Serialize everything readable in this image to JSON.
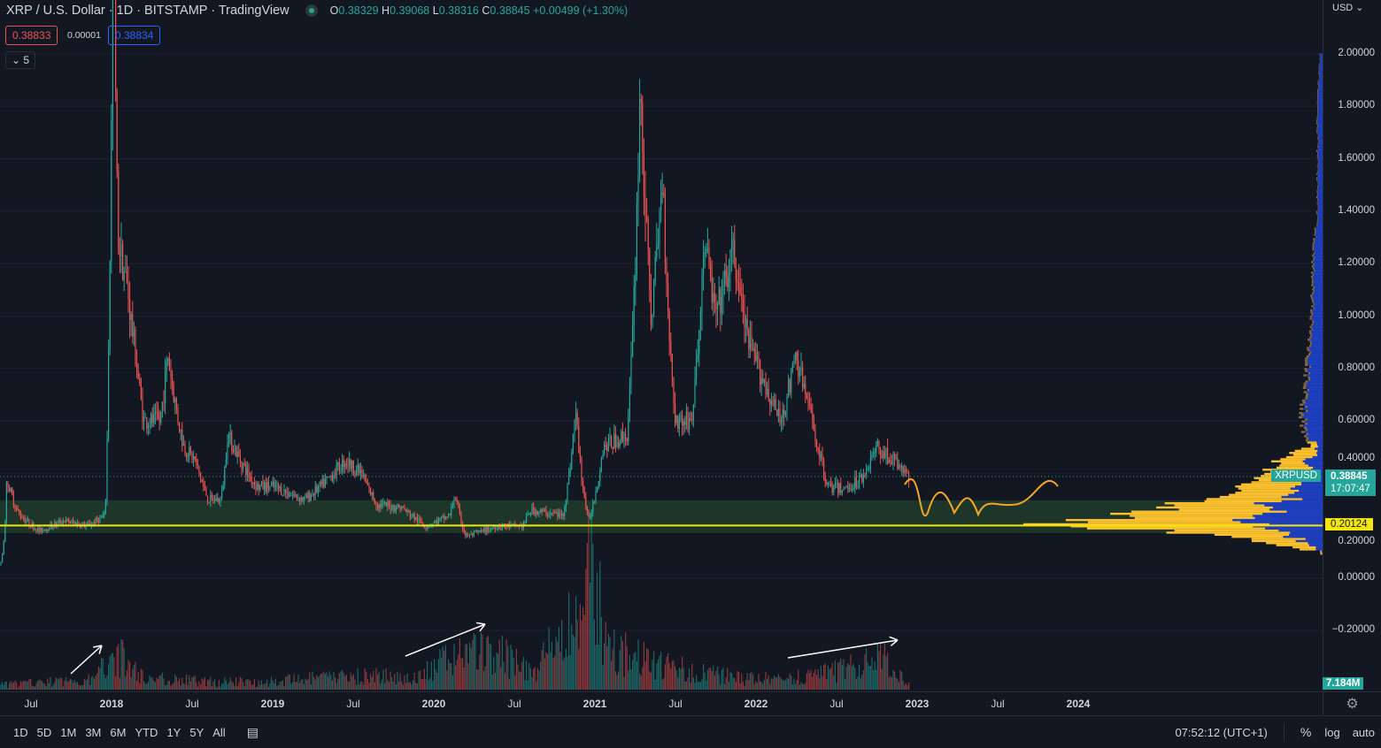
{
  "header": {
    "title": "XRP / U.S. Dollar · 1D · BITSTAMP · TradingView",
    "open_label": "O",
    "open": "0.38329",
    "high_label": "H",
    "high": "0.39068",
    "low_label": "L",
    "low": "0.38316",
    "close_label": "C",
    "close": "0.38845",
    "change": "+0.00499 (+1.30%)",
    "sell_price": "0.38833",
    "spread": "0.00001",
    "buy_price": "0.38834",
    "indicators_toggle": "5",
    "currency": "USD"
  },
  "colors": {
    "background": "#131722",
    "up": "#26a69a",
    "down": "#ef5350",
    "support_line": "#f5e50a",
    "zone": "#1f3a2a",
    "profile_up": "#fbc02d",
    "profile_down": "#1e3fbf"
  },
  "price_tags": {
    "symbol": "XRPUSD",
    "last": "0.38845",
    "countdown": "17:07:47",
    "support": "0.20124",
    "volume": "7.184M"
  },
  "bottom": {
    "ranges": [
      "1D",
      "5D",
      "1M",
      "3M",
      "6M",
      "YTD",
      "1Y",
      "5Y",
      "All"
    ],
    "clock": "07:52:12 (UTC+1)",
    "percent": "%",
    "log": "log",
    "auto": "auto"
  },
  "chart_data": {
    "type": "candlestick",
    "title": "XRP / U.S. Dollar · 1D · BITSTAMP",
    "ylim": [
      -0.25,
      2.1
    ],
    "y_ticks": [
      "2.00000",
      "1.80000",
      "1.60000",
      "1.40000",
      "1.20000",
      "1.00000",
      "0.80000",
      "0.60000",
      "0.40000",
      "0.20000",
      "0.00000",
      "−0.20000"
    ],
    "y_tick_values": [
      2.0,
      1.8,
      1.6,
      1.4,
      1.2,
      1.0,
      0.8,
      0.6,
      0.4,
      0.2,
      0.0,
      -0.2
    ],
    "x_ticks": [
      {
        "label": "Jul",
        "t": 2017.5
      },
      {
        "label": "2018",
        "t": 2018
      },
      {
        "label": "Jul",
        "t": 2018.5
      },
      {
        "label": "2019",
        "t": 2019
      },
      {
        "label": "Jul",
        "t": 2019.5
      },
      {
        "label": "2020",
        "t": 2020
      },
      {
        "label": "Jul",
        "t": 2020.5
      },
      {
        "label": "2021",
        "t": 2021
      },
      {
        "label": "Jul",
        "t": 2021.5
      },
      {
        "label": "2022",
        "t": 2022
      },
      {
        "label": "Jul",
        "t": 2022.5
      },
      {
        "label": "2023",
        "t": 2023
      },
      {
        "label": "Jul",
        "t": 2023.5
      },
      {
        "label": "2024",
        "t": 2024
      }
    ],
    "price_keypoints": [
      [
        2017.31,
        0.05
      ],
      [
        2017.35,
        0.38
      ],
      [
        2017.42,
        0.25
      ],
      [
        2017.55,
        0.18
      ],
      [
        2017.7,
        0.22
      ],
      [
        2017.85,
        0.2
      ],
      [
        2017.96,
        0.24
      ],
      [
        2017.98,
        0.85
      ],
      [
        2018.01,
        2.6
      ],
      [
        2018.04,
        1.3
      ],
      [
        2018.1,
        1.1
      ],
      [
        2018.15,
        0.85
      ],
      [
        2018.2,
        0.6
      ],
      [
        2018.3,
        0.6
      ],
      [
        2018.35,
        0.85
      ],
      [
        2018.45,
        0.5
      ],
      [
        2018.52,
        0.45
      ],
      [
        2018.6,
        0.3
      ],
      [
        2018.68,
        0.3
      ],
      [
        2018.72,
        0.55
      ],
      [
        2018.8,
        0.45
      ],
      [
        2018.9,
        0.35
      ],
      [
        2019.0,
        0.35
      ],
      [
        2019.2,
        0.3
      ],
      [
        2019.45,
        0.45
      ],
      [
        2019.55,
        0.4
      ],
      [
        2019.65,
        0.28
      ],
      [
        2019.8,
        0.27
      ],
      [
        2019.95,
        0.2
      ],
      [
        2020.1,
        0.24
      ],
      [
        2020.13,
        0.32
      ],
      [
        2020.2,
        0.16
      ],
      [
        2020.4,
        0.2
      ],
      [
        2020.55,
        0.2
      ],
      [
        2020.6,
        0.26
      ],
      [
        2020.8,
        0.24
      ],
      [
        2020.88,
        0.65
      ],
      [
        2020.96,
        0.22
      ],
      [
        2021.05,
        0.5
      ],
      [
        2021.2,
        0.55
      ],
      [
        2021.28,
        1.9
      ],
      [
        2021.35,
        1.0
      ],
      [
        2021.42,
        1.55
      ],
      [
        2021.5,
        0.6
      ],
      [
        2021.6,
        0.6
      ],
      [
        2021.68,
        1.3
      ],
      [
        2021.75,
        1.0
      ],
      [
        2021.82,
        1.15
      ],
      [
        2021.86,
        1.25
      ],
      [
        2021.95,
        0.9
      ],
      [
        2022.05,
        0.75
      ],
      [
        2022.15,
        0.6
      ],
      [
        2022.25,
        0.85
      ],
      [
        2022.35,
        0.6
      ],
      [
        2022.45,
        0.35
      ],
      [
        2022.55,
        0.34
      ],
      [
        2022.65,
        0.38
      ],
      [
        2022.75,
        0.5
      ],
      [
        2022.85,
        0.45
      ],
      [
        2022.95,
        0.388
      ]
    ],
    "volume_keypoints_m": [
      [
        2017.31,
        5
      ],
      [
        2017.9,
        10
      ],
      [
        2018.0,
        40
      ],
      [
        2018.2,
        12
      ],
      [
        2018.6,
        8
      ],
      [
        2019.0,
        8
      ],
      [
        2019.5,
        14
      ],
      [
        2019.9,
        12
      ],
      [
        2020.2,
        40
      ],
      [
        2020.4,
        35
      ],
      [
        2020.6,
        18
      ],
      [
        2020.88,
        70
      ],
      [
        2020.96,
        120
      ],
      [
        2021.1,
        40
      ],
      [
        2021.3,
        30
      ],
      [
        2021.6,
        18
      ],
      [
        2022.0,
        10
      ],
      [
        2022.4,
        15
      ],
      [
        2022.8,
        30
      ],
      [
        2022.95,
        7.184
      ]
    ],
    "support_level": 0.20124,
    "zone": [
      0.172,
      0.297
    ],
    "volume_profile_keypoints": [
      [
        0.1,
        0.05
      ],
      [
        0.16,
        0.35
      ],
      [
        0.2,
        1.0
      ],
      [
        0.24,
        0.7
      ],
      [
        0.27,
        0.6
      ],
      [
        0.3,
        0.4
      ],
      [
        0.34,
        0.3
      ],
      [
        0.38,
        0.22
      ],
      [
        0.42,
        0.2
      ],
      [
        0.47,
        0.12
      ],
      [
        0.5,
        0.05
      ],
      [
        0.55,
        0.07
      ],
      [
        0.6,
        0.08
      ],
      [
        0.8,
        0.06
      ],
      [
        1.0,
        0.04
      ],
      [
        1.2,
        0.04
      ],
      [
        1.4,
        0.02
      ],
      [
        1.8,
        0.02
      ],
      [
        2.0,
        0.01
      ]
    ]
  }
}
